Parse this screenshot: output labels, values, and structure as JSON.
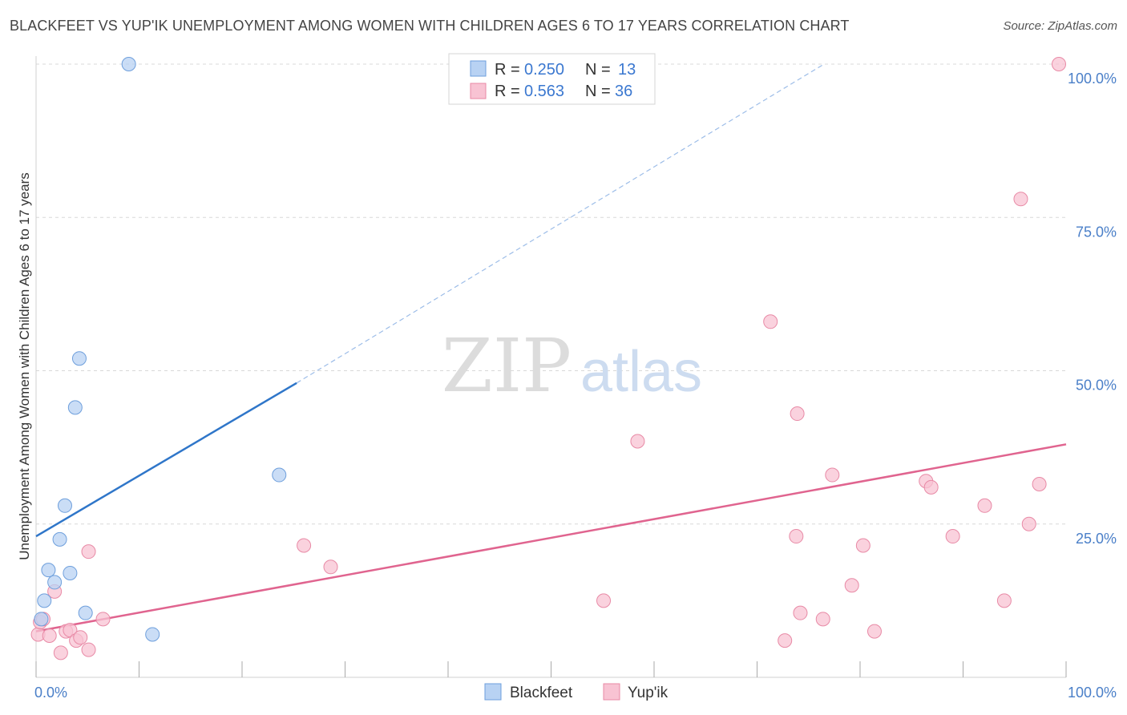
{
  "title": "BLACKFEET VS YUP'IK UNEMPLOYMENT AMONG WOMEN WITH CHILDREN AGES 6 TO 17 YEARS CORRELATION CHART",
  "source": "Source: ZipAtlas.com",
  "watermark": {
    "zip": "ZIP",
    "atlas": "atlas"
  },
  "legend": {
    "rows": [
      {
        "r_label": "R =",
        "r_value": "0.250",
        "n_label": "N =",
        "n_value": "13"
      },
      {
        "r_label": "R =",
        "r_value": "0.563",
        "n_label": "N =",
        "n_value": "36"
      }
    ]
  },
  "bottom_legend": [
    "Blackfeet",
    "Yup'ik"
  ],
  "colors": {
    "blackfeet_fill": "#b8d2f3",
    "blackfeet_stroke": "#6e9fdc",
    "blackfeet_line": "#2f76c9",
    "yupik_fill": "#f8c3d3",
    "yupik_stroke": "#e88aa6",
    "yupik_line": "#e0648f",
    "tick_label": "#4a7fc8",
    "grid": "#d8d8d8"
  },
  "chart_data": {
    "type": "scatter",
    "title": "BLACKFEET VS YUP'IK UNEMPLOYMENT AMONG WOMEN WITH CHILDREN AGES 6 TO 17 YEARS CORRELATION CHART",
    "xlabel": "",
    "ylabel": "Unemployment Among Women with Children Ages 6 to 17 years",
    "xlim": [
      0,
      100
    ],
    "ylim": [
      0,
      100
    ],
    "x_tick_labels": [
      "0.0%",
      "100.0%"
    ],
    "y_tick_labels": [
      "100.0%",
      "75.0%",
      "50.0%",
      "25.0%"
    ],
    "y_ticks": [
      100,
      75,
      50,
      25
    ],
    "grid": true,
    "legend_position": "top-center",
    "series": [
      {
        "name": "Blackfeet",
        "r": 0.25,
        "n": 13,
        "points": [
          [
            0.5,
            9.5
          ],
          [
            0.8,
            12.5
          ],
          [
            1.2,
            17.5
          ],
          [
            1.8,
            15.5
          ],
          [
            2.3,
            22.5
          ],
          [
            2.8,
            28
          ],
          [
            3.3,
            17
          ],
          [
            3.8,
            44
          ],
          [
            4.2,
            52
          ],
          [
            4.8,
            10.5
          ],
          [
            9,
            100
          ],
          [
            11.3,
            7
          ],
          [
            23.6,
            33
          ]
        ],
        "trend_solid": {
          "x": [
            0,
            25.3
          ],
          "y": [
            23,
            48
          ]
        },
        "trend_dashed": {
          "x": [
            25.3,
            76.5
          ],
          "y": [
            48,
            100
          ]
        }
      },
      {
        "name": "Yup'ik",
        "r": 0.563,
        "n": 36,
        "points": [
          [
            0.2,
            7
          ],
          [
            0.4,
            9
          ],
          [
            0.7,
            9.5
          ],
          [
            1.3,
            6.8
          ],
          [
            1.8,
            14
          ],
          [
            2.4,
            4
          ],
          [
            2.9,
            7.5
          ],
          [
            3.3,
            7.7
          ],
          [
            3.9,
            6
          ],
          [
            4.3,
            6.5
          ],
          [
            5.1,
            4.5
          ],
          [
            5.1,
            20.5
          ],
          [
            6.5,
            9.5
          ],
          [
            26,
            21.5
          ],
          [
            28.6,
            18
          ],
          [
            55.1,
            12.5
          ],
          [
            58.4,
            38.5
          ],
          [
            71.3,
            58
          ],
          [
            72.7,
            6
          ],
          [
            73.8,
            23
          ],
          [
            73.9,
            43
          ],
          [
            74.2,
            10.5
          ],
          [
            76.4,
            9.5
          ],
          [
            77.3,
            33
          ],
          [
            79.2,
            15
          ],
          [
            80.3,
            21.5
          ],
          [
            81.4,
            7.5
          ],
          [
            86.4,
            32
          ],
          [
            86.9,
            31
          ],
          [
            89,
            23
          ],
          [
            92.1,
            28
          ],
          [
            94,
            12.5
          ],
          [
            95.6,
            78
          ],
          [
            96.4,
            25
          ],
          [
            97.4,
            31.5
          ],
          [
            99.3,
            100
          ]
        ],
        "trend_solid": {
          "x": [
            0,
            100
          ],
          "y": [
            7.5,
            38
          ]
        }
      }
    ]
  }
}
